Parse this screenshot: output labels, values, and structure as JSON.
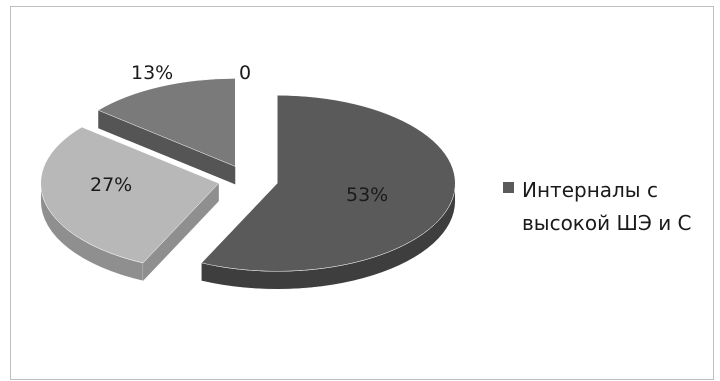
{
  "chart_data": {
    "type": "pie",
    "style": "3d-exploded",
    "slices": [
      {
        "label": "53%",
        "value": 53,
        "color": "#5a5a5a",
        "side": "#3e3e3e"
      },
      {
        "label": "27%",
        "value": 27,
        "color": "#b8b8b8",
        "side": "#8f8f8f"
      },
      {
        "label": "13%",
        "value": 13,
        "color": "#7a7a7a",
        "side": "#555555"
      },
      {
        "label": "0",
        "value": 0,
        "color": "#9a9a9a",
        "side": "#707070"
      }
    ],
    "legend": {
      "placement": "right",
      "entries": [
        {
          "line1": "Интерналы с",
          "line2": "высокой ШЭ и С",
          "color": "#5a5a5a"
        }
      ]
    }
  }
}
